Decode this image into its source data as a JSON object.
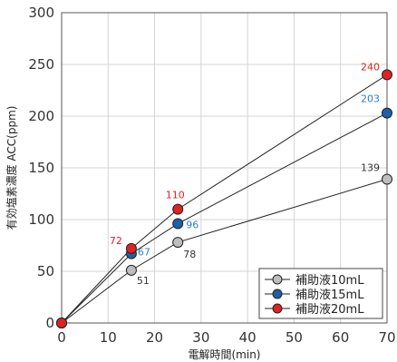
{
  "chart_data": {
    "type": "line",
    "title": "",
    "xlabel": "電解時間(min)",
    "ylabel": "有効塩素濃度 ACC(ppm)",
    "xlim": [
      0,
      70
    ],
    "ylim": [
      0,
      300
    ],
    "xticks": [
      0,
      10,
      20,
      30,
      40,
      50,
      60,
      70
    ],
    "yticks": [
      0,
      50,
      100,
      150,
      200,
      250,
      300
    ],
    "grid": true,
    "legend_position": "bottom-right",
    "series": [
      {
        "name": "補助液10mL",
        "color": "#bdbdbd",
        "label_color": "#333333",
        "points": [
          {
            "x": 0,
            "y": 0,
            "label": ""
          },
          {
            "x": 15,
            "y": 51,
            "label": "51"
          },
          {
            "x": 25,
            "y": 78,
            "label": "78"
          },
          {
            "x": 70,
            "y": 139,
            "label": "139"
          }
        ]
      },
      {
        "name": "補助液15mL",
        "color": "#1f5fa8",
        "label_color": "#2e7fc2",
        "points": [
          {
            "x": 0,
            "y": 0,
            "label": ""
          },
          {
            "x": 15,
            "y": 67,
            "label": "67"
          },
          {
            "x": 25,
            "y": 96,
            "label": "96"
          },
          {
            "x": 70,
            "y": 203,
            "label": "203"
          }
        ]
      },
      {
        "name": "補助液20mL",
        "color": "#e02222",
        "label_color": "#e02222",
        "points": [
          {
            "x": 0,
            "y": 0,
            "label": ""
          },
          {
            "x": 15,
            "y": 72,
            "label": "72"
          },
          {
            "x": 25,
            "y": 110,
            "label": "110"
          },
          {
            "x": 70,
            "y": 240,
            "label": "240"
          }
        ]
      }
    ]
  }
}
